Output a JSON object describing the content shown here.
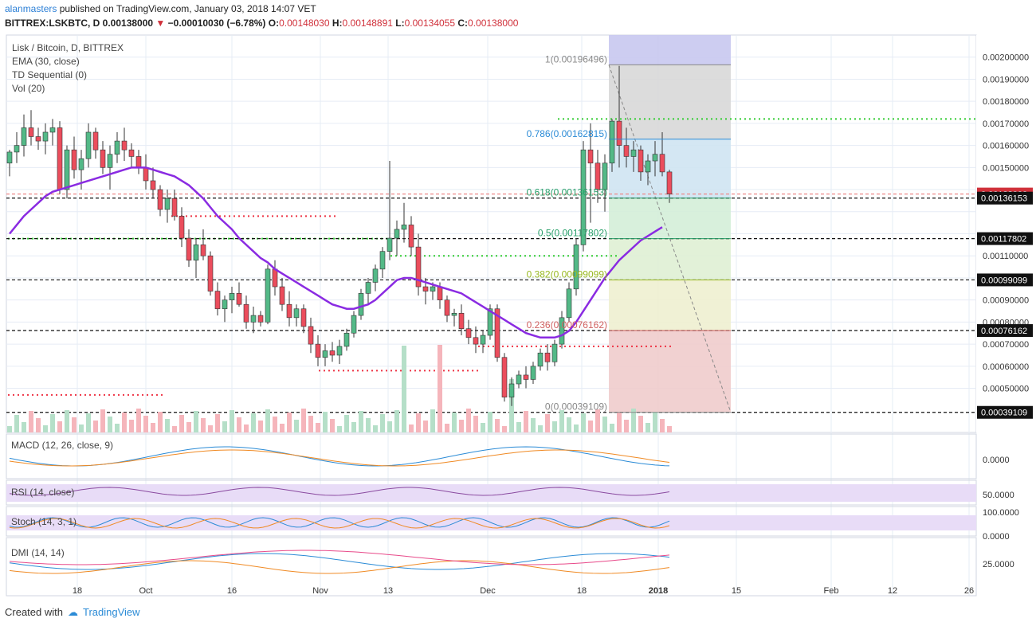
{
  "header": {
    "user": "alanmasters",
    "published": " published on TradingView.com, January 03, 2018 14:07 VET",
    "symbol": "BITTREX:LSKBTC, D",
    "last": "0.00138000",
    "arrow": "▼",
    "change": "−0.00010030 (−6.78%)",
    "o_label": "O:",
    "o": "0.00148030",
    "h_label": "H:",
    "h": "0.00148891",
    "l_label": "L:",
    "l": "0.00134055",
    "c_label": "C:",
    "c": "0.00138000"
  },
  "legend": {
    "title": "Lisk / Bitcoin, D, BITTREX",
    "ema": "EMA (30, close)",
    "td": "TD Sequential (0)",
    "vol": "Vol (20)"
  },
  "panes": {
    "macd": "MACD (12, 26, close, 9)",
    "rsi": "RSI (14, close)",
    "stoch": "Stoch (14, 3, 1)",
    "dmi": "DMI (14, 14)"
  },
  "footer": {
    "created": "Created with",
    "brand": "TradingView"
  },
  "colors": {
    "up": "#53b987",
    "down": "#eb4d5c",
    "ema": "#8a2be2",
    "grid": "#e6ecf5",
    "accent": "#2b7fd6"
  },
  "chart_data": {
    "type": "candlestick",
    "y_scale": "linear",
    "ylim": [
      0.0003,
      0.0021
    ],
    "x_ticks": [
      "18",
      "Oct",
      "16",
      "Nov",
      "13",
      "Dec",
      "18",
      "2018",
      "15",
      "Feb",
      "12",
      "26"
    ],
    "y_ticks": [
      "0.00200000",
      "0.00190000",
      "0.00180000",
      "0.00170000",
      "0.00160000",
      "0.00150000",
      "0.00110000",
      "0.00090000",
      "0.00080000",
      "0.00070000",
      "0.00060000",
      "0.00050000"
    ],
    "price_labels": [
      {
        "value": 0.00138,
        "text": "0.00138000",
        "color": "#d0303a"
      },
      {
        "value": 0.00136153,
        "text": "0.00136153",
        "color": "#111111"
      },
      {
        "value": 0.00117802,
        "text": "0.00117802",
        "color": "#111111"
      },
      {
        "value": 0.00099099,
        "text": "0.00099099",
        "color": "#111111"
      },
      {
        "value": 0.00076162,
        "text": "0.00076162",
        "color": "#111111"
      },
      {
        "value": 0.00039109,
        "text": "0.00039109",
        "color": "#111111"
      }
    ],
    "fib_levels": [
      {
        "ratio": "1",
        "value": 0.00196496,
        "text": "1(0.00196496)"
      },
      {
        "ratio": "0.786",
        "value": 0.00162815,
        "text": "0.786(0.00162815)"
      },
      {
        "ratio": "0.618",
        "value": 0.00136153,
        "text": "0.618(0.00136153)"
      },
      {
        "ratio": "0.5",
        "value": 0.00117802,
        "text": "0.5(0.00117802)"
      },
      {
        "ratio": "0.382",
        "value": 0.00099099,
        "text": "0.382(0.00099099)"
      },
      {
        "ratio": "0.236",
        "value": 0.00076162,
        "text": "0.236(0.00076162)"
      },
      {
        "ratio": "0",
        "value": 0.00039109,
        "text": "0(0.00039109)"
      }
    ],
    "candles": [
      [
        0.00152,
        0.00158,
        0.00146,
        0.00157
      ],
      [
        0.00157,
        0.00166,
        0.00152,
        0.0016
      ],
      [
        0.0016,
        0.00174,
        0.00155,
        0.00168
      ],
      [
        0.00168,
        0.00176,
        0.0016,
        0.00164
      ],
      [
        0.00164,
        0.00168,
        0.00158,
        0.00162
      ],
      [
        0.00162,
        0.0017,
        0.00156,
        0.00166
      ],
      [
        0.00166,
        0.00172,
        0.0016,
        0.00168
      ],
      [
        0.00168,
        0.00171,
        0.00138,
        0.0014
      ],
      [
        0.0014,
        0.0016,
        0.00136,
        0.00158
      ],
      [
        0.00158,
        0.00164,
        0.00145,
        0.00149
      ],
      [
        0.00149,
        0.00158,
        0.0014,
        0.00154
      ],
      [
        0.00154,
        0.0017,
        0.0015,
        0.00166
      ],
      [
        0.00166,
        0.00168,
        0.00154,
        0.00158
      ],
      [
        0.00158,
        0.00162,
        0.00147,
        0.0015
      ],
      [
        0.0015,
        0.0016,
        0.0014,
        0.00156
      ],
      [
        0.00156,
        0.00166,
        0.00152,
        0.00162
      ],
      [
        0.00162,
        0.00168,
        0.00153,
        0.00158
      ],
      [
        0.00158,
        0.00161,
        0.0015,
        0.00155
      ],
      [
        0.00155,
        0.00158,
        0.00147,
        0.0015
      ],
      [
        0.0015,
        0.00156,
        0.0014,
        0.00144
      ],
      [
        0.00144,
        0.0015,
        0.00136,
        0.0014
      ],
      [
        0.0014,
        0.00142,
        0.00128,
        0.00131
      ],
      [
        0.00131,
        0.0014,
        0.00125,
        0.00136
      ],
      [
        0.00136,
        0.0014,
        0.00126,
        0.00128
      ],
      [
        0.00128,
        0.00132,
        0.00114,
        0.00118
      ],
      [
        0.00118,
        0.00122,
        0.00105,
        0.00108
      ],
      [
        0.00108,
        0.00118,
        0.001,
        0.00115
      ],
      [
        0.00115,
        0.00122,
        0.00108,
        0.0011
      ],
      [
        0.0011,
        0.00112,
        0.00092,
        0.00094
      ],
      [
        0.00094,
        0.00098,
        0.00083,
        0.00086
      ],
      [
        0.00086,
        0.00092,
        0.0008,
        0.0009
      ],
      [
        0.0009,
        0.00096,
        0.00084,
        0.00093
      ],
      [
        0.00093,
        0.00098,
        0.00087,
        0.00088
      ],
      [
        0.00088,
        0.00092,
        0.00077,
        0.0008
      ],
      [
        0.0008,
        0.00087,
        0.00075,
        0.00083
      ],
      [
        0.00083,
        0.00085,
        0.00078,
        0.0008
      ],
      [
        0.0008,
        0.00106,
        0.00079,
        0.00104
      ],
      [
        0.00104,
        0.00108,
        0.00092,
        0.00096
      ],
      [
        0.00096,
        0.001,
        0.00085,
        0.00088
      ],
      [
        0.00088,
        0.00094,
        0.00078,
        0.00082
      ],
      [
        0.00082,
        0.00088,
        0.00078,
        0.00086
      ],
      [
        0.00086,
        0.00088,
        0.00075,
        0.00078
      ],
      [
        0.00078,
        0.00082,
        0.00066,
        0.0007
      ],
      [
        0.0007,
        0.00074,
        0.0006,
        0.00064
      ],
      [
        0.00064,
        0.0007,
        0.0006,
        0.00067
      ],
      [
        0.00067,
        0.00071,
        0.00062,
        0.00065
      ],
      [
        0.00065,
        0.00072,
        0.00061,
        0.00069
      ],
      [
        0.00069,
        0.00077,
        0.00067,
        0.00075
      ],
      [
        0.00075,
        0.00085,
        0.00073,
        0.00083
      ],
      [
        0.00083,
        0.00095,
        0.00081,
        0.00093
      ],
      [
        0.00093,
        0.001,
        0.00088,
        0.00098
      ],
      [
        0.00098,
        0.00106,
        0.00094,
        0.00104
      ],
      [
        0.00104,
        0.00114,
        0.001,
        0.00112
      ],
      [
        0.00112,
        0.00153,
        0.00108,
        0.00118
      ],
      [
        0.00118,
        0.00126,
        0.0011,
        0.00122
      ],
      [
        0.00122,
        0.00134,
        0.00116,
        0.00124
      ],
      [
        0.00124,
        0.00128,
        0.0011,
        0.00114
      ],
      [
        0.00114,
        0.0012,
        0.00092,
        0.00096
      ],
      [
        0.00096,
        0.001,
        0.00088,
        0.00094
      ],
      [
        0.00094,
        0.00098,
        0.0009,
        0.00096
      ],
      [
        0.00096,
        0.00098,
        0.00086,
        0.0009
      ],
      [
        0.0009,
        0.00092,
        0.0008,
        0.00083
      ],
      [
        0.00083,
        0.00086,
        0.00078,
        0.00084
      ],
      [
        0.00084,
        0.00088,
        0.00074,
        0.00077
      ],
      [
        0.00077,
        0.00081,
        0.0007,
        0.00073
      ],
      [
        0.00073,
        0.00078,
        0.00066,
        0.0007
      ],
      [
        0.0007,
        0.00076,
        0.00066,
        0.00074
      ],
      [
        0.00074,
        0.00088,
        0.00072,
        0.00086
      ],
      [
        0.00086,
        0.00088,
        0.00062,
        0.00064
      ],
      [
        0.00064,
        0.00066,
        0.00044,
        0.00046
      ],
      [
        0.00046,
        0.00055,
        0.00042,
        0.00052
      ],
      [
        0.00052,
        0.00058,
        0.0005,
        0.00056
      ],
      [
        0.00056,
        0.0006,
        0.0005,
        0.00054
      ],
      [
        0.00054,
        0.00062,
        0.00052,
        0.0006
      ],
      [
        0.0006,
        0.00068,
        0.00058,
        0.00066
      ],
      [
        0.00066,
        0.0007,
        0.00058,
        0.00062
      ],
      [
        0.00062,
        0.00072,
        0.0006,
        0.0007
      ],
      [
        0.0007,
        0.00085,
        0.00068,
        0.00082
      ],
      [
        0.00082,
        0.00098,
        0.0008,
        0.00095
      ],
      [
        0.00095,
        0.00118,
        0.00092,
        0.00115
      ],
      [
        0.00115,
        0.00162,
        0.00112,
        0.00158
      ],
      [
        0.00158,
        0.0017,
        0.00125,
        0.00152
      ],
      [
        0.00152,
        0.00158,
        0.00134,
        0.0014
      ],
      [
        0.0014,
        0.00156,
        0.0013,
        0.00152
      ],
      [
        0.00152,
        0.00172,
        0.00148,
        0.00171
      ],
      [
        0.00171,
        0.00196,
        0.0015,
        0.0016
      ],
      [
        0.0016,
        0.00168,
        0.0015,
        0.00155
      ],
      [
        0.00155,
        0.00162,
        0.00148,
        0.00158
      ],
      [
        0.00158,
        0.0016,
        0.00144,
        0.00148
      ],
      [
        0.00148,
        0.00156,
        0.00142,
        0.00153
      ],
      [
        0.00153,
        0.00162,
        0.00146,
        0.00156
      ],
      [
        0.00156,
        0.00166,
        0.00146,
        0.00148
      ],
      [
        0.00148,
        0.00149,
        0.00134,
        0.00138
      ]
    ],
    "ema30": [
      0.0012,
      0.00124,
      0.00128,
      0.00131,
      0.00134,
      0.00137,
      0.00139,
      0.0014,
      0.00141,
      0.00142,
      0.00143,
      0.00144,
      0.00145,
      0.00146,
      0.00147,
      0.00148,
      0.00149,
      0.0015,
      0.0015,
      0.0015,
      0.00149,
      0.00148,
      0.00147,
      0.00146,
      0.00144,
      0.00142,
      0.00139,
      0.00136,
      0.00132,
      0.00128,
      0.00125,
      0.00122,
      0.00118,
      0.00115,
      0.00112,
      0.00109,
      0.00107,
      0.00104,
      0.00102,
      0.001,
      0.00098,
      0.00096,
      0.00094,
      0.00092,
      0.0009,
      0.00088,
      0.00087,
      0.00086,
      0.00086,
      0.00087,
      0.00088,
      0.0009,
      0.00093,
      0.00096,
      0.00099,
      0.001,
      0.001,
      0.00099,
      0.00098,
      0.00097,
      0.00096,
      0.00095,
      0.00094,
      0.00093,
      0.00091,
      0.00089,
      0.00087,
      0.00085,
      0.00083,
      0.00081,
      0.00079,
      0.00077,
      0.00075,
      0.00074,
      0.00073,
      0.00073,
      0.00073,
      0.00074,
      0.00076,
      0.0008,
      0.00085,
      0.0009,
      0.00095,
      0.001,
      0.00104,
      0.00108,
      0.00111,
      0.00114,
      0.00117,
      0.00119,
      0.00121,
      0.00123
    ]
  }
}
